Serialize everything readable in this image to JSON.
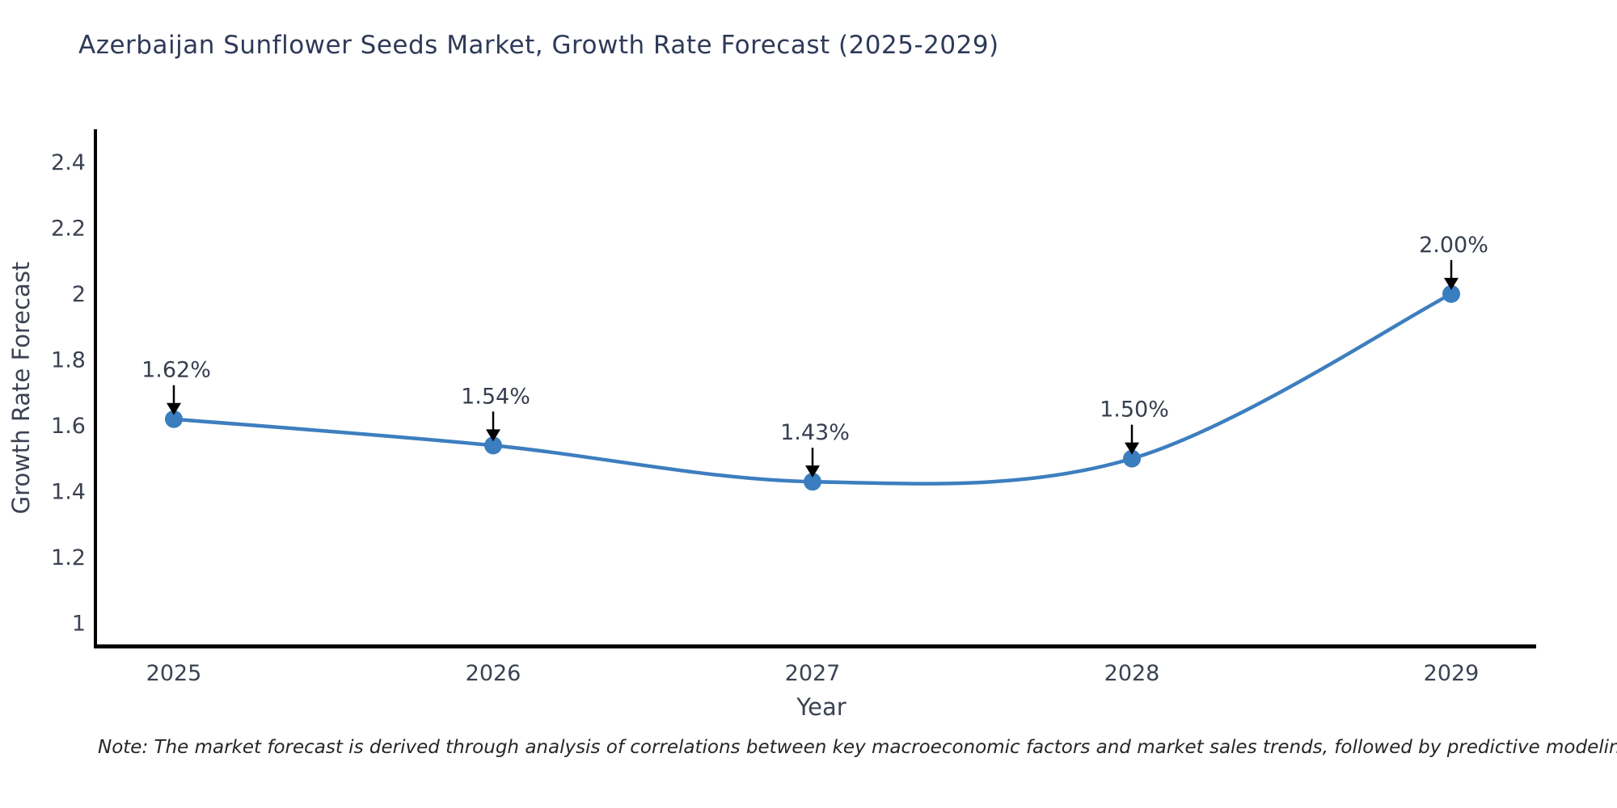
{
  "title": "Azerbaijan Sunflower Seeds Market, Growth Rate Forecast (2025-2029)",
  "note": "Note: The market forecast is derived through analysis of correlations between key macroeconomic factors and market sales trends, followed by predictive modeling to project future sales",
  "chart_data": {
    "type": "line",
    "categories": [
      "2025",
      "2026",
      "2027",
      "2028",
      "2029"
    ],
    "values": [
      1.62,
      1.54,
      1.43,
      1.5,
      2.0
    ],
    "point_labels": [
      "1.62%",
      "1.54%",
      "1.43%",
      "1.50%",
      "2.00%"
    ],
    "title": "Azerbaijan Sunflower Seeds Market, Growth Rate Forecast (2025-2029)",
    "xlabel": "Year",
    "ylabel": "Growth Rate Forecast",
    "yticks": [
      1,
      1.2,
      1.4,
      1.6,
      1.8,
      2,
      2.2,
      2.4
    ],
    "ytick_labels": [
      "1",
      "1.2",
      "1.4",
      "1.6",
      "1.8",
      "2",
      "2.2",
      "2.4"
    ],
    "ylim": [
      0.93,
      2.5
    ],
    "grid": false,
    "legend": "none",
    "line_smooth": true,
    "colors": {
      "line": "#3d7ebf",
      "marker": "#3a7ebf",
      "arrow": "#000000",
      "axis": "#000000",
      "tick_text": "#3b4252",
      "axis_label_text": "#3b4252",
      "annotation_text": "#363e4f",
      "title_text": "#2e3a59",
      "note_text": "#262626",
      "background": "#ffffff"
    }
  }
}
